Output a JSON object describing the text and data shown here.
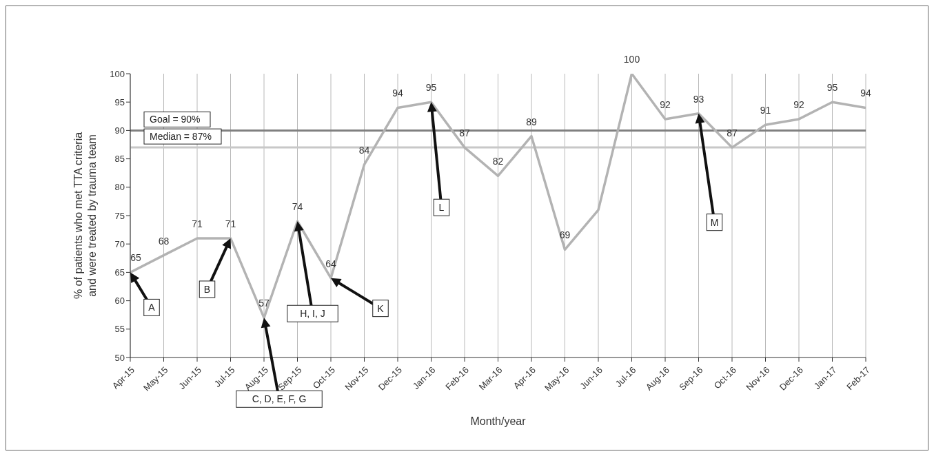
{
  "chart_data": {
    "type": "line",
    "xlabel": "Month/year",
    "ylabel": "% of patients who met TTA criteria\nand were treated by trauma team",
    "categories": [
      "Apr-15",
      "May-15",
      "Jun-15",
      "Jul-15",
      "Aug-15",
      "Sep-15",
      "Oct-15",
      "Nov-15",
      "Dec-15",
      "Jan-16",
      "Feb-16",
      "Mar-16",
      "Apr-16",
      "May-16",
      "Jun-16",
      "Jul-16",
      "Aug-16",
      "Sep-16",
      "Oct-16",
      "Nov-16",
      "Dec-16",
      "Jan-17",
      "Feb-17"
    ],
    "series": [
      {
        "color": "#b3b3b3",
        "values": [
          65,
          68,
          71,
          71,
          57,
          74,
          64,
          84,
          94,
          95,
          87,
          82,
          89,
          69,
          76,
          100,
          92,
          93,
          87,
          91,
          92,
          95,
          94
        ],
        "value_labels": [
          "65",
          "68",
          "71",
          "71",
          "57",
          "74",
          "64",
          "84",
          "94",
          "95",
          "87",
          "82",
          "89",
          "69",
          null,
          "100",
          "92",
          "93",
          "87",
          "91",
          "92",
          "95",
          "94"
        ]
      }
    ],
    "ylim": [
      50,
      100
    ],
    "yticks": [
      50,
      55,
      60,
      65,
      70,
      75,
      80,
      85,
      90,
      95,
      100
    ],
    "grid": "x",
    "marker": "none",
    "line_style": "solid",
    "ref_lines": [
      {
        "axis": "y",
        "value": 90,
        "label": "Goal = 90%",
        "color": "#808080"
      },
      {
        "axis": "y",
        "value": 87,
        "label": "Median = 87%",
        "color": "#c8c8c8"
      }
    ],
    "annotations": [
      "A",
      "B",
      "C, D, E, F, G",
      "H, I, J",
      "K",
      "L",
      "M"
    ]
  }
}
